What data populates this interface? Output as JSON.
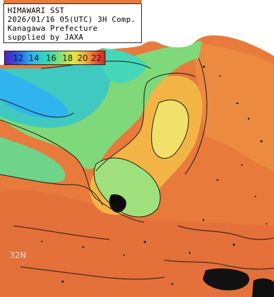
{
  "header": {
    "lines": [
      "HIMAWARI SST",
      "2026/01/16 05(UTC) 3H Comp.",
      "Kanagawa Prefecture",
      "supplied by JAXA"
    ]
  },
  "legend": {
    "ticks": [
      "12",
      "14",
      "16",
      "18",
      "20",
      "22"
    ],
    "colors": [
      "#5a1fb5",
      "#2457e6",
      "#2eb8f0",
      "#36d9b4",
      "#7fe07a",
      "#e3e646",
      "#f4b238",
      "#ee5f2c",
      "#d2232f"
    ]
  },
  "map": {
    "lat_label": "32N",
    "land_color": "#ffffff",
    "cloud_color": "#000000",
    "warm_color": "#e8743a"
  }
}
